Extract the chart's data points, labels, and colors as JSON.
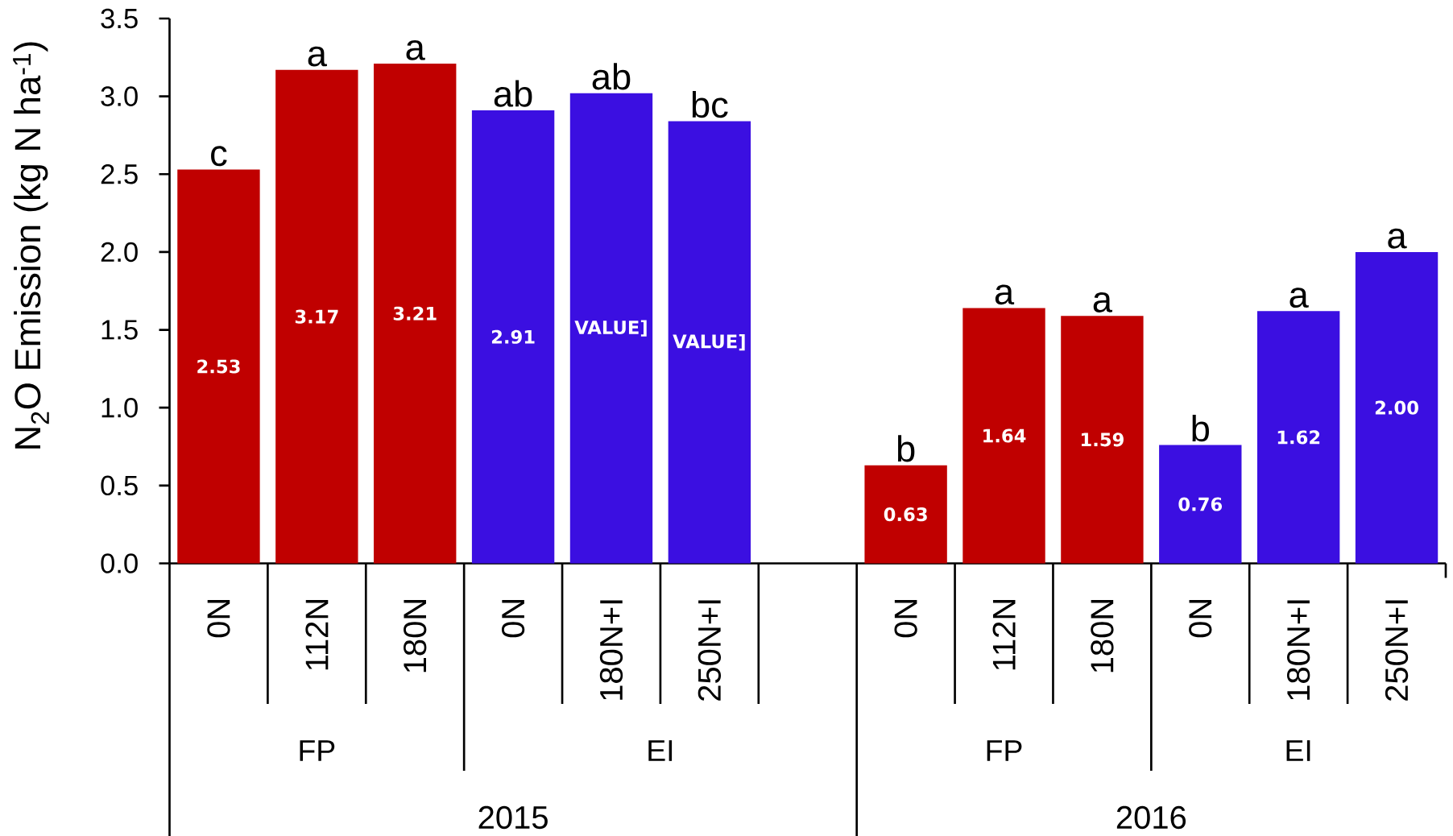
{
  "chart_data": {
    "type": "bar",
    "ylabel": "N$_{2}$O Emission (kg N ha$^{-1}$)",
    "categories": [
      "0N",
      "112N",
      "180N",
      "0N",
      "180N+I",
      "250N+I",
      null,
      "0N",
      "112N",
      "180N",
      "0N",
      "180N+I",
      "250N+I"
    ],
    "values": [
      2.53,
      3.17,
      3.21,
      2.91,
      3.02,
      2.84,
      null,
      0.63,
      1.64,
      1.59,
      0.76,
      1.62,
      2.0
    ],
    "colors": [
      "#c00000",
      "#c00000",
      "#c00000",
      "#3b0fe1",
      "#3b0fe1",
      "#3b0fe1",
      null,
      "#c00000",
      "#c00000",
      "#c00000",
      "#3b0fe1",
      "#3b0fe1",
      "#3b0fe1"
    ],
    "value_labels": [
      "2.53",
      "3.17",
      "3.21",
      "2.91",
      "VALUE]",
      "VALUE]",
      null,
      "0.63",
      "1.64",
      "1.59",
      "0.76",
      "1.62",
      "2.00"
    ],
    "ylim": [
      0,
      3.5
    ],
    "yticks": [
      {
        "value": 0,
        "label": "0.0"
      },
      {
        "value": 0.5,
        "label": "0.5"
      },
      {
        "value": 1,
        "label": "1.0"
      },
      {
        "value": 1.5,
        "label": "1.5"
      },
      {
        "value": 2,
        "label": "2.0"
      },
      {
        "value": 2.5,
        "label": "2.5"
      },
      {
        "value": 3,
        "label": "3.0"
      },
      {
        "value": 3.5,
        "label": "3.5"
      }
    ],
    "annotations": [
      "c",
      "a",
      "a",
      "ab",
      "ab",
      "bc",
      "b",
      "a",
      "a",
      "b",
      "a",
      "a",
      "FP",
      "EI",
      "FP",
      "EI",
      "2015",
      "2016"
    ]
  }
}
